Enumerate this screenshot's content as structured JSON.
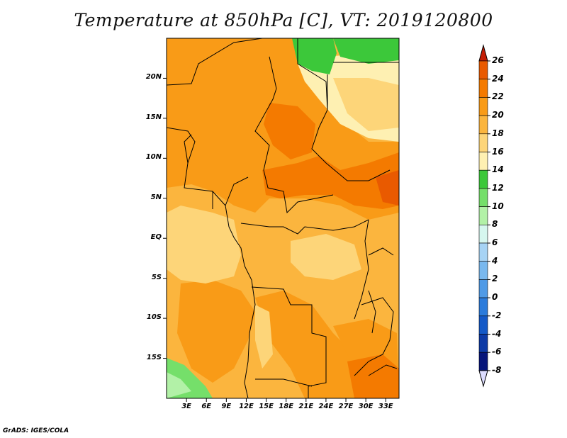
{
  "title": "Temperature at 850hPa [C], VT: 2019120800",
  "credit": "GrADS: IGES/COLA",
  "map": {
    "variable": "Temperature at 850hPa",
    "units": "C",
    "valid_time": "2019120800",
    "lon_range": [
      0,
      35
    ],
    "lat_range": [
      -20,
      25
    ],
    "lat_labels": [
      "20N",
      "15N",
      "10N",
      "5N",
      "EQ",
      "5S",
      "10S",
      "15S"
    ],
    "lat_values": [
      20,
      15,
      10,
      5,
      0,
      -5,
      -10,
      -15
    ],
    "lon_labels": [
      "3E",
      "6E",
      "9E",
      "12E",
      "15E",
      "18E",
      "21E",
      "24E",
      "27E",
      "30E",
      "33E"
    ],
    "lon_values": [
      3,
      6,
      9,
      12,
      15,
      18,
      21,
      24,
      27,
      30,
      33
    ]
  },
  "colorbar": {
    "levels": [
      26,
      24,
      22,
      20,
      18,
      16,
      14,
      12,
      10,
      8,
      6,
      4,
      2,
      0,
      -2,
      -4,
      -6,
      -8
    ],
    "colors": [
      "#d42a05",
      "#e95a00",
      "#f47a00",
      "#f99b17",
      "#fbb53e",
      "#fdd579",
      "#fef0b2",
      "#3cc83a",
      "#75df6a",
      "#b2f1a7",
      "#d6f7ef",
      "#a7d3f4",
      "#79b8ee",
      "#4f9ae6",
      "#2b7bdb",
      "#1459c7",
      "#0d3aa6",
      "#06157a"
    ],
    "top_arrow_color": "#c41d05",
    "bottom_arrow_color": "#dcdcff"
  }
}
